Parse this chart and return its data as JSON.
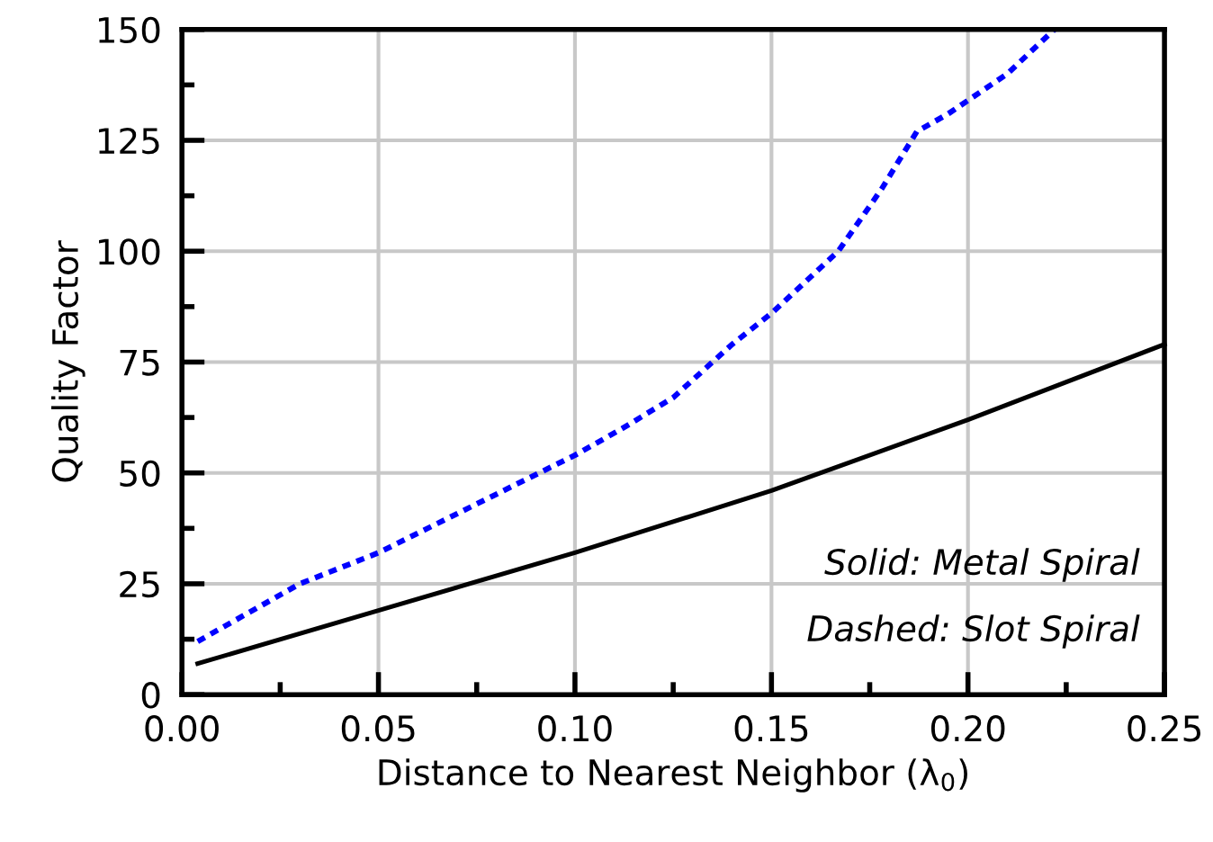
{
  "chart_data": {
    "type": "line",
    "xlabel": "Distance to Nearest Neighbor (λ$_{0}$)",
    "ylabel": "Quality Factor",
    "xlim": [
      0,
      0.25
    ],
    "ylim": [
      0,
      150
    ],
    "xticks": [
      {
        "value": 0,
        "label": "0.00"
      },
      {
        "value": 0.025,
        "label": null
      },
      {
        "value": 0.05,
        "label": "0.05"
      },
      {
        "value": 0.075,
        "label": null
      },
      {
        "value": 0.1,
        "label": "0.10"
      },
      {
        "value": 0.125,
        "label": null
      },
      {
        "value": 0.15,
        "label": "0.15"
      },
      {
        "value": 0.175,
        "label": null
      },
      {
        "value": 0.2,
        "label": "0.20"
      },
      {
        "value": 0.225,
        "label": null
      },
      {
        "value": 0.25,
        "label": "0.25"
      }
    ],
    "yticks": [
      0,
      {
        "value": 12.5,
        "label": null
      },
      25,
      {
        "value": 37.5,
        "label": null
      },
      50,
      {
        "value": 62.5,
        "label": null
      },
      75,
      {
        "value": 87.5,
        "label": null
      },
      100,
      {
        "value": 112.5,
        "label": null
      },
      125,
      {
        "value": 137.5,
        "label": null
      },
      150
    ],
    "grid": true,
    "marker": "none",
    "series": [
      {
        "color": "#000000",
        "line_style": "solid",
        "x": [
          0.004,
          0.05,
          0.1,
          0.15,
          0.2,
          0.25
        ],
        "values": [
          7,
          19,
          32,
          46,
          62,
          79
        ]
      },
      {
        "color": "#0000ff",
        "line_style": "dotted",
        "x": [
          0.004,
          0.03,
          0.05,
          0.075,
          0.1,
          0.112,
          0.125,
          0.14,
          0.15,
          0.167,
          0.178,
          0.187,
          0.195,
          0.21,
          0.222
        ],
        "values": [
          12,
          25,
          32,
          43,
          54,
          60,
          67,
          79,
          86,
          100,
          114,
          127,
          131,
          140,
          150
        ]
      }
    ],
    "annotations": [
      "Solid: Metal Spiral",
      "Dashed: Slot Spiral"
    ]
  }
}
